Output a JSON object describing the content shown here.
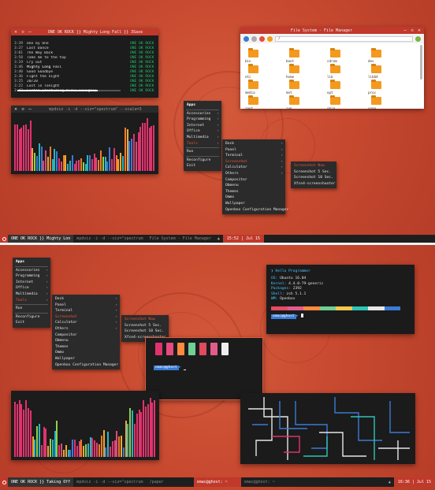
{
  "music": {
    "title": "ONE OK ROCK }} Mighty Long Fall }} 3Saxe",
    "artist": "ONE OK ROCK",
    "tracks": [
      {
        "time": "3:39",
        "name": "One by One"
      },
      {
        "time": "3:37",
        "name": "Last Dance"
      },
      {
        "time": "3:01",
        "name": "The Way Back"
      },
      {
        "time": "3:58",
        "name": "Take me to the top"
      },
      {
        "time": "3:19",
        "name": "Cry out"
      },
      {
        "time": "3:46",
        "name": "Mighty Long Fall"
      },
      {
        "time": "3:40",
        "name": "Good Goodbye"
      },
      {
        "time": "3:36",
        "name": "Fight the night"
      },
      {
        "time": "3:25",
        "name": "20/20"
      },
      {
        "time": "3:22",
        "name": "Lost in Tonight"
      },
      {
        "time": "3:43",
        "name": "Listen (featuring Avril Lavigne)"
      }
    ],
    "progress": 0.78
  },
  "visualizer": {
    "title": "mpdviz -i -d --viz=\"spectrum\" --scale=3"
  },
  "filemanager": {
    "title": "File System - File Manager",
    "path": "/",
    "folders": [
      "bin",
      "boot",
      "cdrom",
      "dev",
      "etc",
      "home",
      "lib",
      "lib64",
      "media",
      "mnt",
      "opt",
      "proc",
      "root",
      "run",
      "sbin",
      "snap"
    ]
  },
  "appmenu": {
    "items": [
      "Apps",
      "Accessories",
      "Programming",
      "Internet",
      "Office",
      "Multimedia",
      "Tools",
      "Run",
      "Reconfigure",
      "Exit"
    ]
  },
  "toolsmenu": {
    "items": [
      "Dock",
      "Panel",
      "Terminal",
      "Screenshot",
      "Calculator",
      "Others",
      "Compositor",
      "Obmenu",
      "Themes",
      "Ommo",
      "Wallpaper",
      "Openbox Configuration Manager"
    ]
  },
  "screenshotmenu": {
    "items": [
      "Screenshot Now",
      "Screenshot 5 Sec.",
      "Screenshot 10 Sec.",
      "Xfce4-screenshooter"
    ]
  },
  "taskbar1": {
    "tasks": [
      "ONE OK ROCK }} Mighty Lon",
      "mpdviz -i -d --viz=\"spectrum",
      "File System - File Manager"
    ],
    "clock": "15:52 | Jul 15"
  },
  "taskbar2": {
    "tasks": [
      "ONE OK ROCK }} Taking Off",
      "mpdviz -i -d --viz=\"spectrum",
      "/paper",
      "omac@ghost: ~",
      "omac@ghost: ~"
    ],
    "clock": "16:36 | Jul 15"
  },
  "sysinfo": {
    "header": "Hello Programmer",
    "rows": [
      {
        "k": "OS:",
        "v": "Ubuntu 16.04"
      },
      {
        "k": "Kernel:",
        "v": "4.4.0-79-generic"
      },
      {
        "k": "Packages:",
        "v": "2392"
      },
      {
        "k": "Shell:",
        "v": "zsh 5.1.1"
      },
      {
        "k": "WM:",
        "v": "Openbox"
      }
    ],
    "prompt": "omac@ghost"
  },
  "term2": {
    "prompt": "omac@ghost"
  },
  "colors": {
    "accent": "#c0392b",
    "palette": [
      "#e84a5f",
      "#e15c8c",
      "#ff8a3d",
      "#6fcf97",
      "#f2c94c",
      "#2ec4b6",
      "#e6e6e6",
      "#3a7bd5"
    ]
  }
}
